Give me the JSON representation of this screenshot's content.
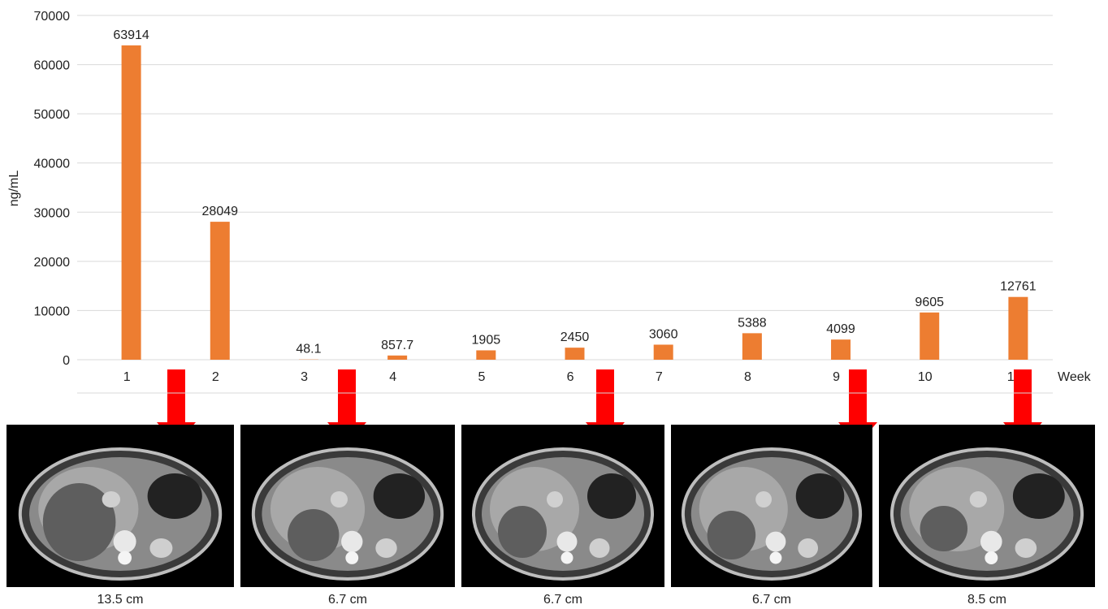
{
  "chart_data": {
    "type": "bar",
    "ylabel": "ng/mL",
    "xlabel": "Week",
    "ylim": [
      0,
      70000
    ],
    "yticks": [
      0,
      10000,
      20000,
      30000,
      40000,
      50000,
      60000,
      70000
    ],
    "ytick_labels": [
      "0",
      "10000",
      "20000",
      "30000",
      "40000",
      "50000",
      "60000",
      "70000"
    ],
    "grid": true,
    "categories": [
      "1",
      "2",
      "3",
      "4",
      "5",
      "6",
      "7",
      "8",
      "9",
      "10",
      "11"
    ],
    "values": [
      63914,
      28049,
      48.1,
      857.7,
      1905,
      2450,
      3060,
      5388,
      4099,
      9605,
      12761
    ],
    "value_labels": [
      "63914",
      "28049",
      "48.1",
      "857.7",
      "1905",
      "2450",
      "3060",
      "5388",
      "4099",
      "9605",
      "12761"
    ],
    "bar_color": "#ED7D31"
  },
  "scans": [
    {
      "size": "13.5 cm",
      "arrow_after_week": "1"
    },
    {
      "size": "6.7 cm",
      "arrow_after_week": "3"
    },
    {
      "size": "6.7 cm",
      "arrow_after_week": "6"
    },
    {
      "size": "6.7 cm",
      "arrow_after_week": "9"
    },
    {
      "size": "8.5 cm",
      "arrow_after_week": "11"
    }
  ],
  "colors": {
    "arrow": "#FF0000",
    "grid": "#D9D9D9"
  }
}
